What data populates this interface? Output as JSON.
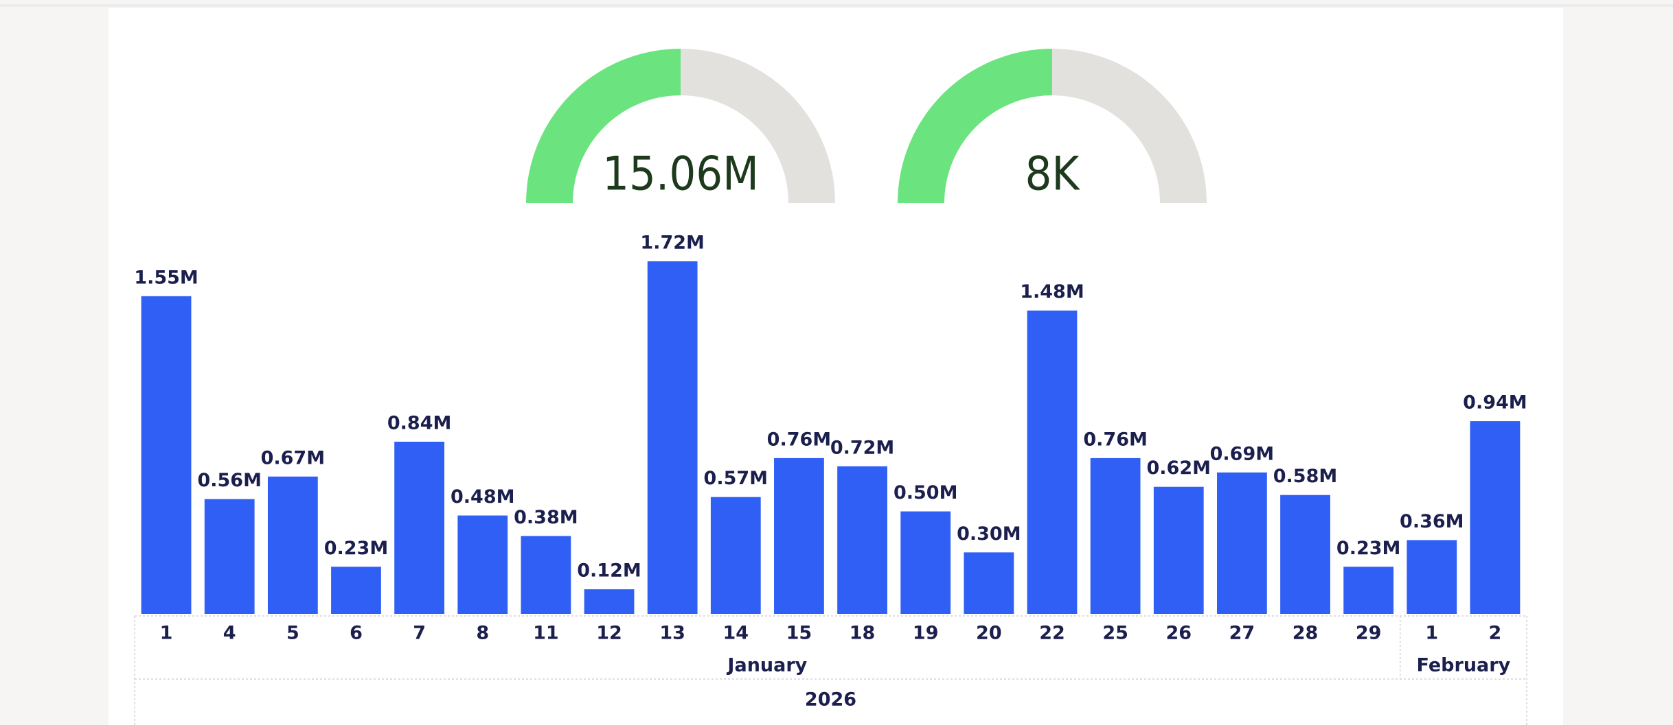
{
  "gauges": [
    {
      "value": 15.06,
      "value_label": "15.06M",
      "range": [
        0,
        30.12
      ]
    },
    {
      "value": 8,
      "value_label": "8K",
      "range": [
        0,
        16
      ]
    }
  ],
  "chart_data": {
    "type": "bar",
    "color": "#2f5ff5",
    "ylim": [
      0,
      1.72
    ],
    "groups": [
      {
        "name": "January",
        "categories": [
          "1",
          "4",
          "5",
          "6",
          "7",
          "8",
          "11",
          "12",
          "13",
          "14",
          "15",
          "18",
          "19",
          "20",
          "22",
          "25",
          "26",
          "27",
          "28",
          "29"
        ]
      },
      {
        "name": "February",
        "categories": [
          "1",
          "2"
        ]
      }
    ],
    "year": "2026",
    "values": [
      1.55,
      0.56,
      0.67,
      0.23,
      0.84,
      0.48,
      0.38,
      0.12,
      1.72,
      0.57,
      0.76,
      0.72,
      0.5,
      0.3,
      1.48,
      0.76,
      0.62,
      0.69,
      0.58,
      0.23,
      0.36,
      0.94
    ],
    "value_labels": [
      "1.55M",
      "0.56M",
      "0.67M",
      "0.23M",
      "0.84M",
      "0.48M",
      "0.38M",
      "0.12M",
      "1.72M",
      "0.57M",
      "0.76M",
      "0.72M",
      "0.50M",
      "0.30M",
      "1.48M",
      "0.76M",
      "0.62M",
      "0.69M",
      "0.58M",
      "0.23M",
      "0.36M",
      "0.94M"
    ]
  }
}
